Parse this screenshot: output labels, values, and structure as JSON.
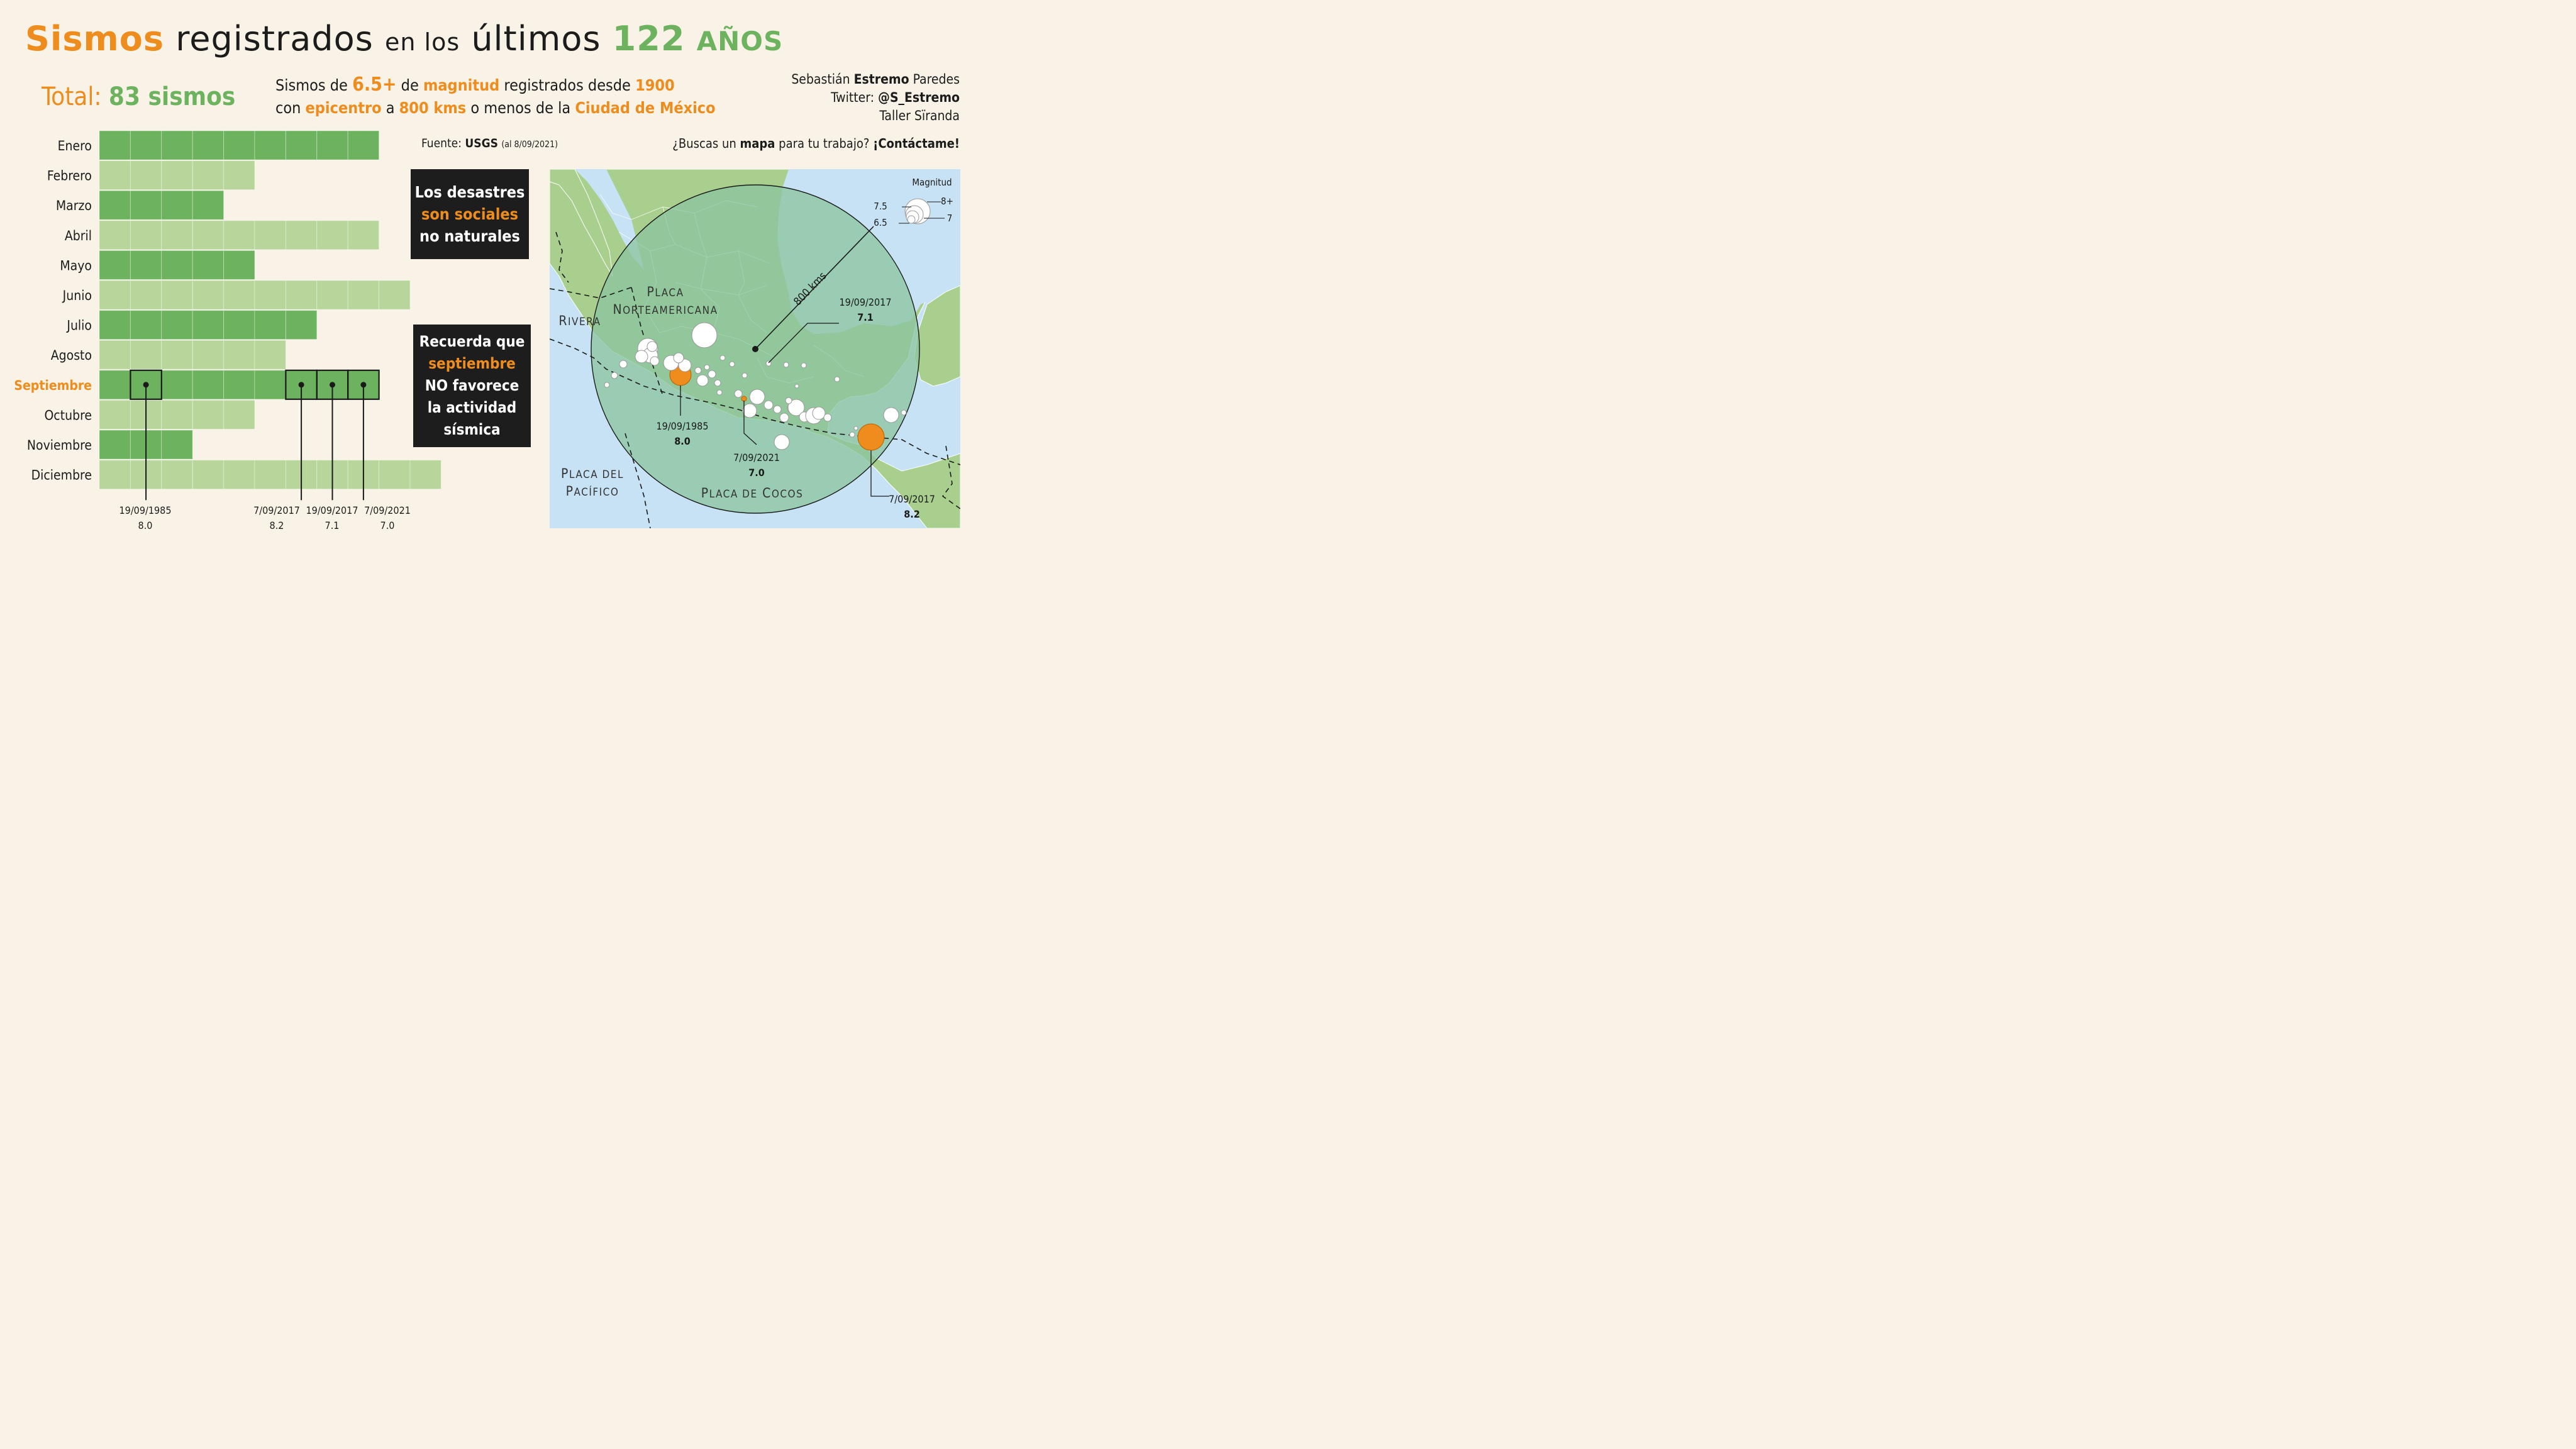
{
  "header": {
    "title_word1": "Sismos",
    "title_word2": "registrados",
    "title_small": "en los",
    "title_word3": "últimos",
    "title_number": "122",
    "title_years": "AÑOS",
    "total_label": "Total:",
    "total_value": "83 sismos",
    "subtitle": {
      "l1_a": "Sismos de",
      "l1_b": "6.5+",
      "l1_c": "de",
      "l1_d": "magnitud",
      "l1_e": "registrados desde",
      "l1_f": "1900",
      "l2_a": "con",
      "l2_b": "epicentro",
      "l2_c": "a",
      "l2_d": "800 kms",
      "l2_e": "o menos de la",
      "l2_f": "Ciudad de México"
    },
    "credits": {
      "name_a": "Sebastián",
      "name_b": "Estremo",
      "name_c": "Paredes",
      "twitter_label": "Twitter:",
      "twitter_handle": "@S_Estremo",
      "studio": "Taller Sïranda"
    },
    "source": {
      "label": "Fuente:",
      "name": "USGS",
      "note": "(al 8/09/2021)"
    },
    "cta": {
      "a": "¿Buscas un",
      "b": "mapa",
      "c": "para tu trabajo?",
      "d": "¡Contáctame!"
    }
  },
  "boxes": {
    "box1": {
      "l1": "Los desastres",
      "l2": "son sociales",
      "l3": "no naturales"
    },
    "box2": {
      "l1": "Recuerda que",
      "l2": "septiembre",
      "l3": "NO favorece",
      "l4": "la actividad",
      "l5": "sísmica"
    }
  },
  "chart_data": [
    {
      "type": "bar",
      "orientation": "horizontal",
      "unit_style": "one block per earthquake",
      "categories": [
        "Enero",
        "Febrero",
        "Marzo",
        "Abril",
        "Mayo",
        "Junio",
        "Julio",
        "Agosto",
        "Septiembre",
        "Octubre",
        "Noviembre",
        "Diciembre"
      ],
      "values": [
        9,
        5,
        4,
        9,
        5,
        10,
        7,
        6,
        9,
        5,
        3,
        11
      ],
      "highlight_category": "Septiembre",
      "highlighted_blocks": [
        {
          "category": "Septiembre",
          "index": 2,
          "date": "19/09/1985",
          "magnitude": "8.0"
        },
        {
          "category": "Septiembre",
          "index": 7,
          "date": "7/09/2017",
          "magnitude": "8.2"
        },
        {
          "category": "Septiembre",
          "index": 8,
          "date": "19/09/2017",
          "magnitude": "7.1"
        },
        {
          "category": "Septiembre",
          "index": 9,
          "date": "7/09/2021",
          "magnitude": "7.0"
        }
      ],
      "colors": {
        "dark": "#6db35f",
        "light": "#b8d69c",
        "highlight_text": "#ee8c1d"
      }
    },
    {
      "type": "scatter",
      "kind": "map",
      "radius_label": "800 kms",
      "legend": {
        "title": "Magnitud",
        "levels": [
          "6.5",
          "7",
          "7.5",
          "8+"
        ]
      },
      "plates": [
        "Placa Norteamericana",
        "Rivera",
        "Placa del Pacífico",
        "Placa de Cocos"
      ],
      "callouts": [
        {
          "date": "19/09/2017",
          "magnitude": "7.1"
        },
        {
          "date": "19/09/1985",
          "magnitude": "8.0"
        },
        {
          "date": "7/09/2021",
          "magnitude": "7.0"
        },
        {
          "date": "7/09/2017",
          "magnitude": "8.2"
        }
      ],
      "colors": {
        "sea": "#c7e2f4",
        "land": "#a9cf8e",
        "circle": "#89c49e",
        "quake": "#ffffff",
        "highlight": "#ee8c1d"
      }
    }
  ]
}
